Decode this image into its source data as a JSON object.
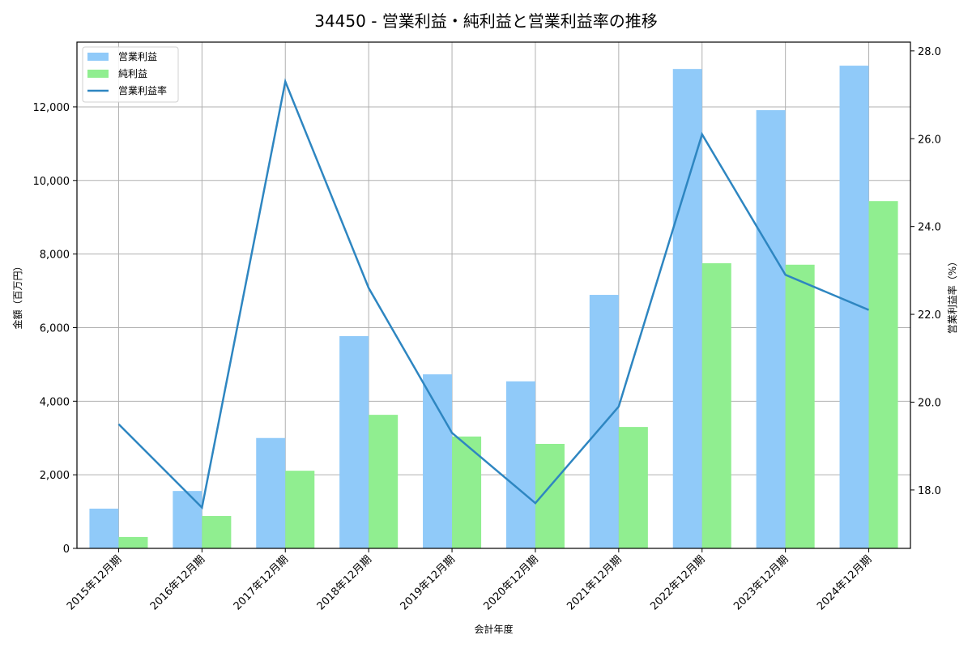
{
  "chart_data": {
    "type": "bar",
    "title": "34450 - 営業利益・純利益と営業利益率の推移",
    "xlabel": "会計年度",
    "ylabel": "金額（百万円）",
    "ylabel_right": "営業利益率（%）",
    "categories": [
      "2015年12月期",
      "2016年12月期",
      "2017年12月期",
      "2018年12月期",
      "2019年12月期",
      "2020年12月期",
      "2021年12月期",
      "2022年12月期",
      "2023年12月期",
      "2024年12月期"
    ],
    "series": [
      {
        "name": "営業利益",
        "type": "bar",
        "axis": "left",
        "color": "#90CAF9",
        "values": [
          1080,
          1560,
          3000,
          5770,
          4730,
          4540,
          6890,
          13030,
          11910,
          13120
        ]
      },
      {
        "name": "純利益",
        "type": "bar",
        "axis": "left",
        "color": "#90EE90",
        "values": [
          310,
          880,
          2110,
          3630,
          3040,
          2840,
          3300,
          7750,
          7710,
          9440
        ]
      },
      {
        "name": "営業利益率",
        "type": "line",
        "axis": "right",
        "color": "#2E86C1",
        "values": [
          19.5,
          17.6,
          27.3,
          22.6,
          19.3,
          17.7,
          19.9,
          26.1,
          22.9,
          22.1
        ]
      }
    ],
    "ylim": [
      0,
      13760
    ],
    "yticks": [
      0,
      2000,
      4000,
      6000,
      8000,
      10000,
      12000
    ],
    "ytick_labels": [
      "0",
      "2,000",
      "4,000",
      "6,000",
      "8,000",
      "10,000",
      "12,000"
    ],
    "ylim_right": [
      16.67,
      28.2
    ],
    "yticks_right": [
      18.0,
      20.0,
      22.0,
      24.0,
      26.0,
      28.0
    ],
    "ytick_labels_right": [
      "18.0",
      "20.0",
      "22.0",
      "24.0",
      "26.0",
      "28.0"
    ],
    "grid": true,
    "legend_position": "upper left"
  },
  "legend": {
    "items": [
      {
        "label": "営業利益",
        "kind": "patch",
        "color": "#90CAF9"
      },
      {
        "label": "純利益",
        "kind": "patch",
        "color": "#90EE90"
      },
      {
        "label": "営業利益率",
        "kind": "line",
        "color": "#2E86C1"
      }
    ]
  }
}
